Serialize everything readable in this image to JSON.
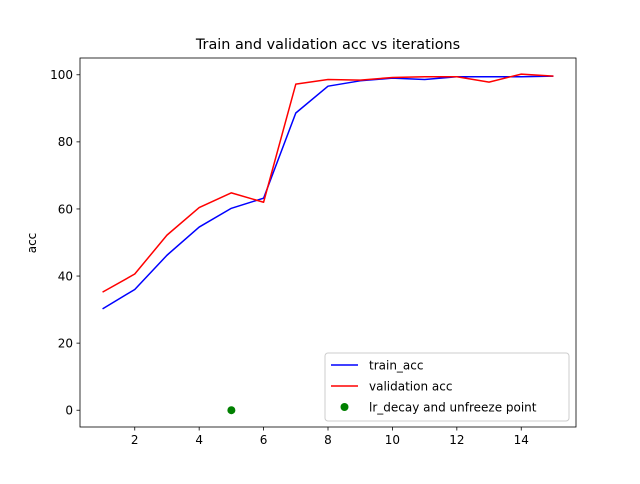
{
  "chart_data": {
    "type": "line",
    "title": "Train and validation acc vs iterations",
    "xlabel": "",
    "ylabel": "acc",
    "xlim": [
      0.3,
      15.7
    ],
    "ylim": [
      -5,
      105
    ],
    "xticks": [
      2,
      4,
      6,
      8,
      10,
      12,
      14
    ],
    "yticks": [
      0,
      20,
      40,
      60,
      80,
      100
    ],
    "grid": false,
    "legend_position": "lower right",
    "x": [
      1,
      2,
      3,
      4,
      5,
      6,
      7,
      8,
      9,
      10,
      11,
      12,
      13,
      14,
      15
    ],
    "series": [
      {
        "name": "train_acc",
        "kind": "line",
        "color": "#0000ff",
        "values": [
          30.2,
          36.0,
          46.2,
          54.6,
          60.2,
          63.2,
          88.6,
          96.6,
          98.2,
          99.0,
          98.6,
          99.4,
          99.4,
          99.4,
          99.6
        ]
      },
      {
        "name": "validation acc",
        "kind": "line",
        "color": "#ff0000",
        "values": [
          35.2,
          40.6,
          52.2,
          60.4,
          64.8,
          62.0,
          97.2,
          98.6,
          98.4,
          99.2,
          99.4,
          99.4,
          97.8,
          100.2,
          99.6
        ]
      },
      {
        "name": "lr_decay and unfreeze point",
        "kind": "scatter",
        "color": "#008000",
        "points": [
          [
            5,
            0
          ]
        ]
      }
    ]
  }
}
